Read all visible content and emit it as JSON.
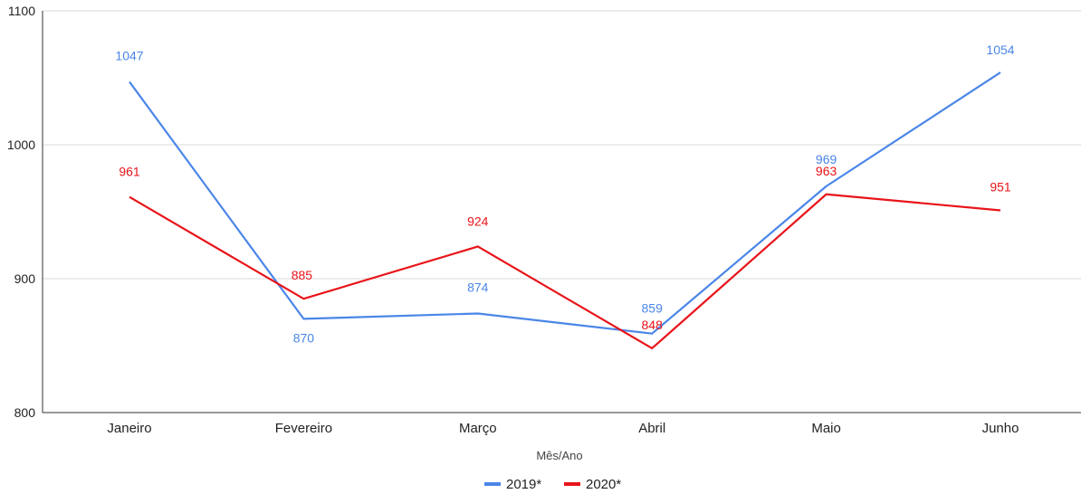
{
  "chart_data": {
    "type": "line",
    "title": "",
    "xlabel": "Mês/Ano",
    "ylabel": "",
    "categories": [
      "Janeiro",
      "Fevereiro",
      "Março",
      "Abril",
      "Maio",
      "Junho"
    ],
    "ylim": [
      800,
      1100
    ],
    "yticks": [
      800,
      900,
      1000,
      1100
    ],
    "grid": true,
    "legend_position": "bottom",
    "series": [
      {
        "name": "2019*",
        "color": "#4a86e8",
        "values": [
          1047,
          870,
          874,
          859,
          969,
          1054
        ]
      },
      {
        "name": "2020*",
        "color": "#e8141a",
        "values": [
          961,
          885,
          924,
          848,
          963,
          951
        ]
      }
    ]
  }
}
